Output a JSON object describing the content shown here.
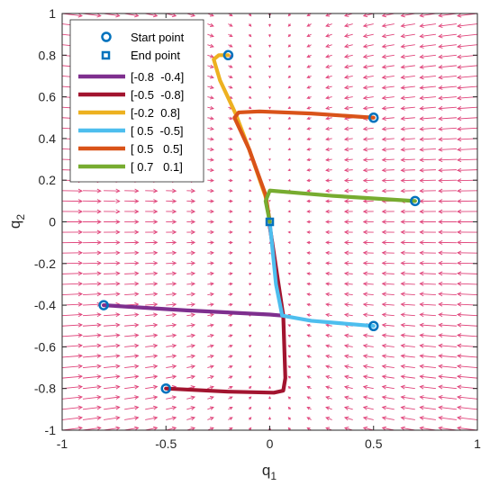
{
  "chart_data": {
    "type": "line",
    "title": "",
    "xlabel": "q",
    "xlabel_sub": "1",
    "ylabel": "q",
    "ylabel_sub": "2",
    "xlim": [
      -1,
      1
    ],
    "ylim": [
      -1,
      1
    ],
    "xticks": [
      -1,
      -0.5,
      0,
      0.5,
      1
    ],
    "xtick_labels": [
      "-1",
      "-0.5",
      "0",
      "0.5",
      "1"
    ],
    "yticks": [
      -1,
      -0.8,
      -0.6,
      -0.4,
      -0.2,
      0,
      0.2,
      0.4,
      0.6,
      0.8,
      1
    ],
    "ytick_labels": [
      "-1",
      "-0.8",
      "-0.6",
      "-0.4",
      "-0.2",
      "0",
      "0.2",
      "0.4",
      "0.6",
      "0.8",
      "1"
    ],
    "grid": false,
    "legend_position": "top-left",
    "markers": {
      "start_label": "Start point",
      "end_label": "End point",
      "color": "#0072BD"
    },
    "end_point": [
      0,
      0
    ],
    "vector_field": {
      "color": "#E0457B",
      "x_step": 0.1,
      "y_step": 0.05
    },
    "series": [
      {
        "name": "[-0.8  -0.4]",
        "color": "#7E2F8E",
        "points": [
          [
            -0.8,
            -0.4
          ],
          [
            -0.4,
            -0.425
          ],
          [
            0.0,
            -0.445
          ],
          [
            0.06,
            -0.45
          ],
          [
            0.0,
            -0.02
          ],
          [
            0,
            0
          ]
        ]
      },
      {
        "name": "[-0.5  -0.8]",
        "color": "#A2142F",
        "points": [
          [
            -0.5,
            -0.8
          ],
          [
            -0.2,
            -0.815
          ],
          [
            0.02,
            -0.82
          ],
          [
            0.065,
            -0.81
          ],
          [
            0.075,
            -0.75
          ],
          [
            0.065,
            -0.45
          ],
          [
            0.0,
            -0.02
          ],
          [
            0,
            0
          ]
        ]
      },
      {
        "name": "[-0.2  0.8]",
        "color": "#EDB120",
        "points": [
          [
            -0.2,
            0.8
          ],
          [
            -0.245,
            0.8
          ],
          [
            -0.27,
            0.78
          ],
          [
            -0.24,
            0.68
          ],
          [
            -0.165,
            0.52
          ],
          [
            -0.1,
            0.35
          ],
          [
            -0.02,
            0.12
          ],
          [
            0,
            0
          ]
        ]
      },
      {
        "name": "[ 0.5  -0.5]",
        "color": "#4DBEEE",
        "points": [
          [
            0.5,
            -0.5
          ],
          [
            0.2,
            -0.475
          ],
          [
            0.06,
            -0.45
          ],
          [
            0.03,
            -0.3
          ],
          [
            0.01,
            -0.1
          ],
          [
            0,
            0
          ]
        ]
      },
      {
        "name": "[ 0.5   0.5]",
        "color": "#D95319",
        "points": [
          [
            0.5,
            0.5
          ],
          [
            0.2,
            0.52
          ],
          [
            -0.05,
            0.53
          ],
          [
            -0.15,
            0.525
          ],
          [
            -0.17,
            0.5
          ],
          [
            -0.1,
            0.35
          ],
          [
            -0.02,
            0.13
          ],
          [
            0,
            0
          ]
        ]
      },
      {
        "name": "[ 0.7   0.1]",
        "color": "#77AC30",
        "points": [
          [
            0.7,
            0.1
          ],
          [
            0.3,
            0.125
          ],
          [
            0.0,
            0.15
          ],
          [
            -0.02,
            0.1
          ],
          [
            0,
            0
          ]
        ]
      }
    ]
  }
}
